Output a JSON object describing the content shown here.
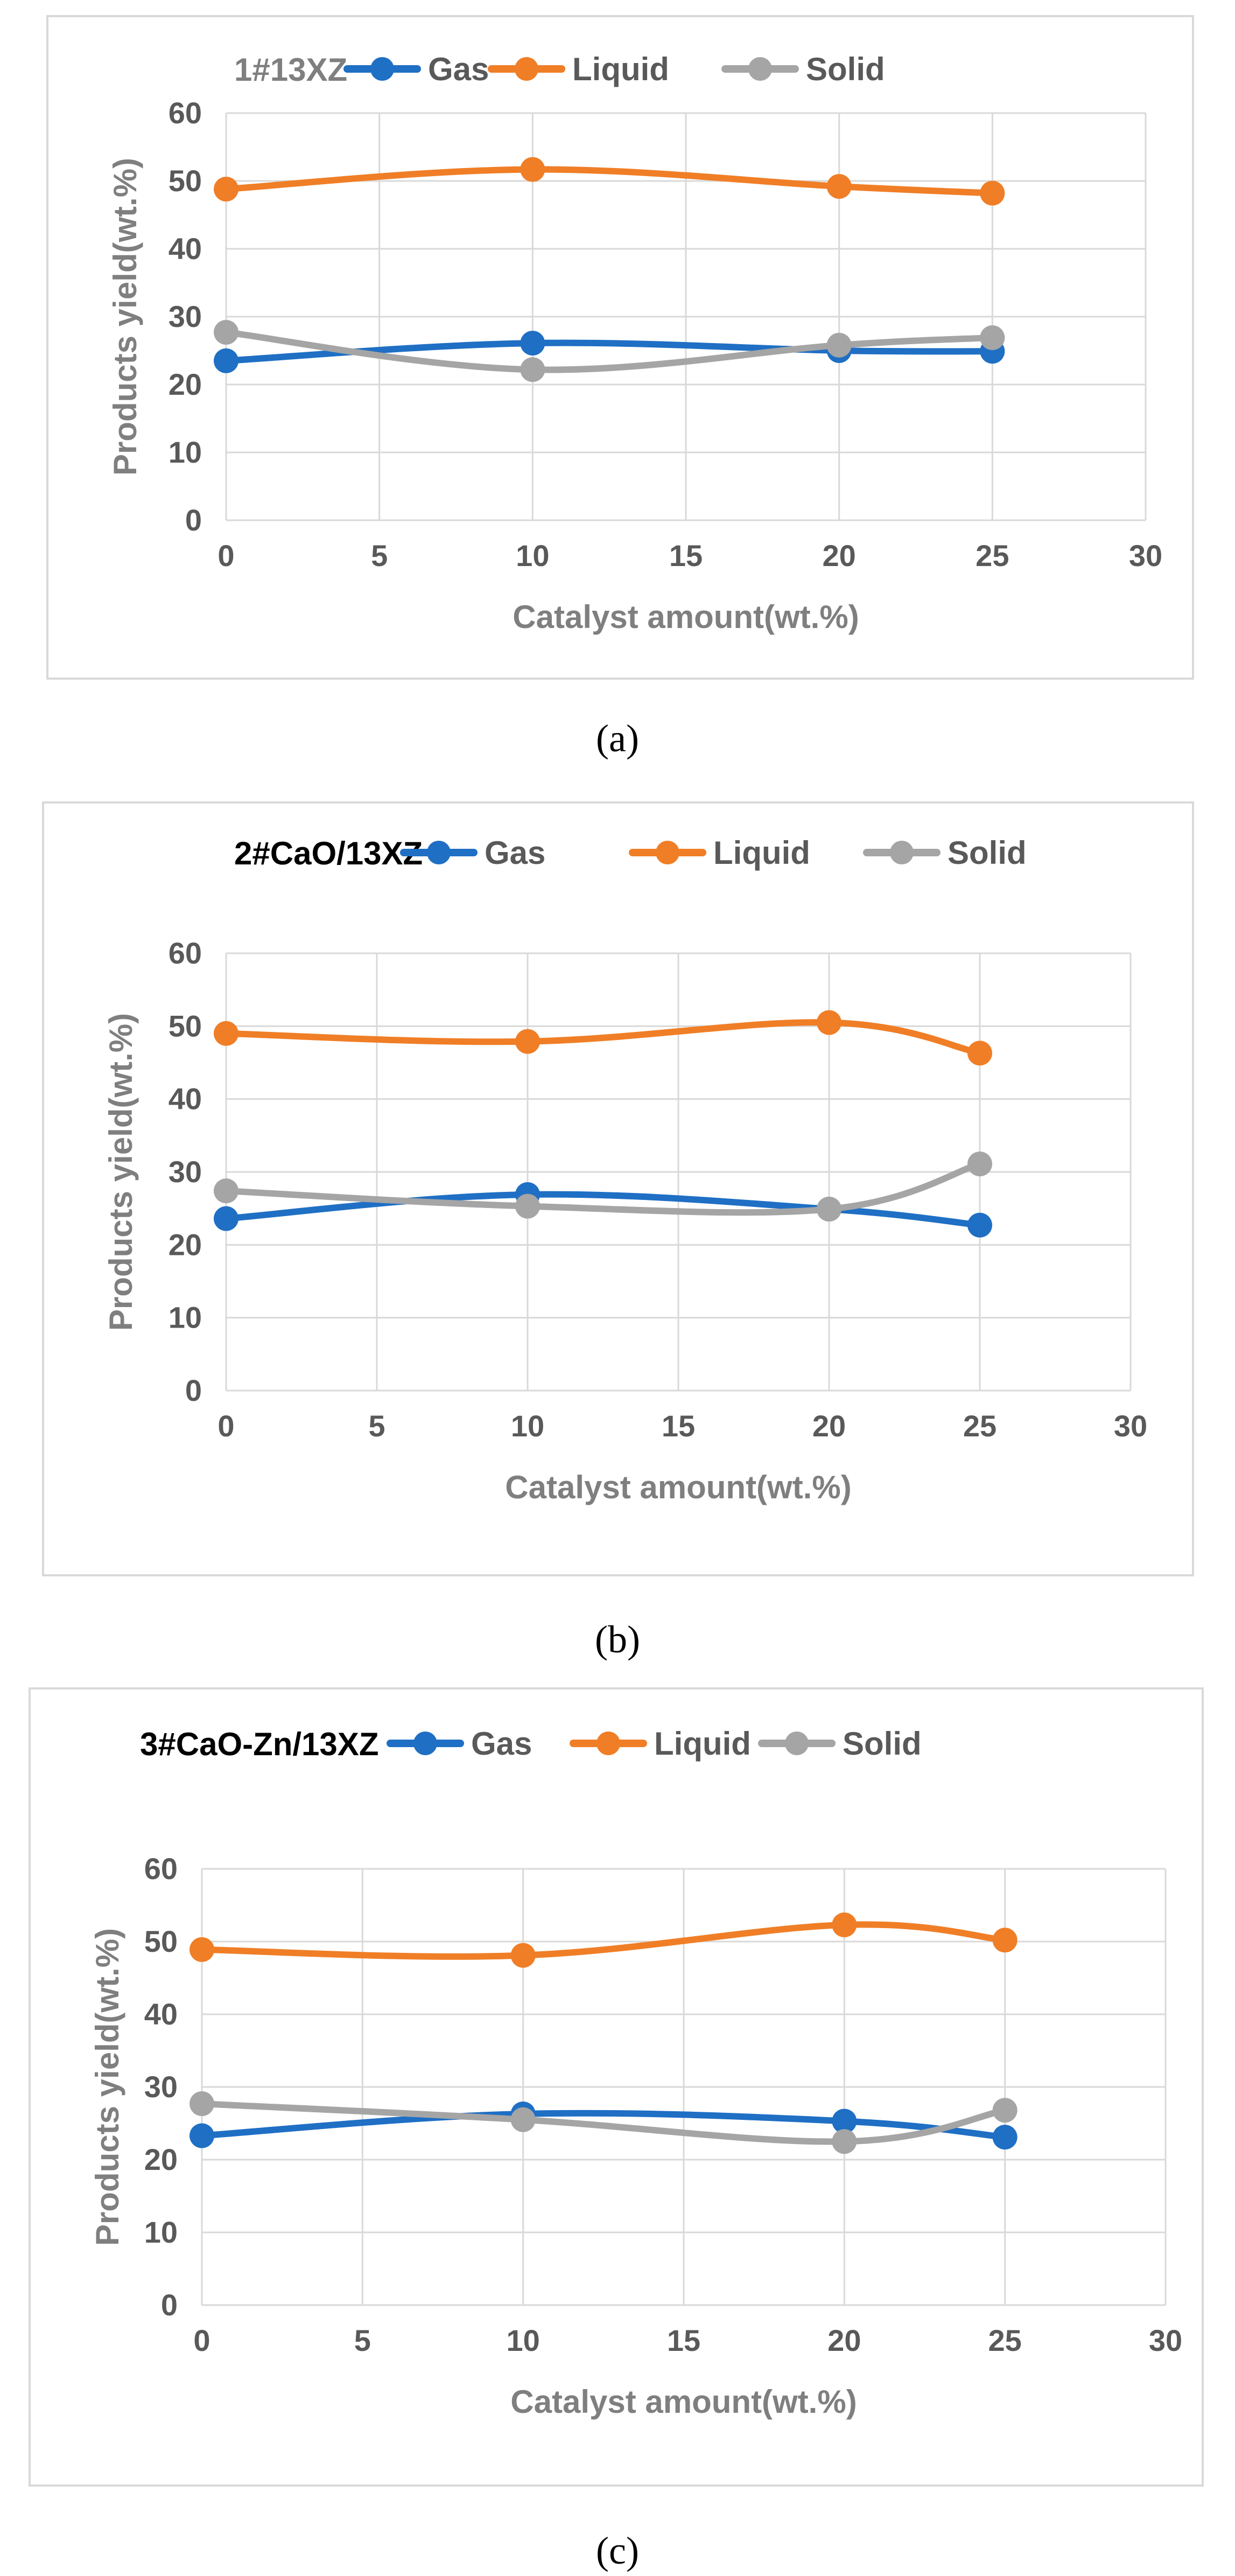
{
  "colors": {
    "gas": "#1f6fc4",
    "liquid": "#f07e26",
    "solid": "#a5a5a5",
    "grid": "#d9d9d9",
    "frame": "#d9d9d9"
  },
  "chart_data": [
    {
      "type": "line",
      "panel": "a",
      "title": "1#13XZ",
      "caption": "(a)",
      "xlabel": "Catalyst amount(wt.%)",
      "ylabel": "Products yield(wt.%)",
      "xlim": [
        0,
        30
      ],
      "ylim": [
        0,
        60
      ],
      "xticks": [
        "0",
        "5",
        "10",
        "15",
        "20",
        "25",
        "30"
      ],
      "yticks": [
        "0",
        "10",
        "20",
        "30",
        "40",
        "50",
        "60"
      ],
      "x": [
        0,
        10,
        20,
        25
      ],
      "series": [
        {
          "name": "Gas",
          "values": [
            23.5,
            26.1,
            25.0,
            24.9
          ]
        },
        {
          "name": "Liquid",
          "values": [
            48.8,
            51.7,
            49.2,
            48.2
          ]
        },
        {
          "name": "Solid",
          "values": [
            27.7,
            22.2,
            25.8,
            26.9
          ]
        }
      ]
    },
    {
      "type": "line",
      "panel": "b",
      "title": "2#CaO/13XZ",
      "caption": "(b)",
      "xlabel": "Catalyst amount(wt.%)",
      "ylabel": "Products yield(wt.%)",
      "xlim": [
        0,
        30
      ],
      "ylim": [
        0,
        60
      ],
      "xticks": [
        "0",
        "5",
        "10",
        "15",
        "20",
        "25",
        "30"
      ],
      "yticks": [
        "0",
        "10",
        "20",
        "30",
        "40",
        "50",
        "60"
      ],
      "x": [
        0,
        10,
        20,
        25
      ],
      "series": [
        {
          "name": "Gas",
          "values": [
            23.6,
            26.9,
            24.9,
            22.7
          ]
        },
        {
          "name": "Liquid",
          "values": [
            49.0,
            47.9,
            50.5,
            46.3
          ]
        },
        {
          "name": "Solid",
          "values": [
            27.4,
            25.3,
            24.9,
            31.1
          ]
        }
      ]
    },
    {
      "type": "line",
      "panel": "c",
      "title": "3#CaO-Zn/13XZ",
      "caption": "(c)",
      "xlabel": "Catalyst amount(wt.%)",
      "ylabel": "Products yield(wt.%)",
      "xlim": [
        0,
        30
      ],
      "ylim": [
        0,
        60
      ],
      "xticks": [
        "0",
        "5",
        "10",
        "15",
        "20",
        "25",
        "30"
      ],
      "yticks": [
        "0",
        "10",
        "20",
        "30",
        "40",
        "50",
        "60"
      ],
      "x": [
        0,
        10,
        20,
        25
      ],
      "series": [
        {
          "name": "Gas",
          "values": [
            23.3,
            26.3,
            25.3,
            23.1
          ]
        },
        {
          "name": "Liquid",
          "values": [
            48.9,
            48.1,
            52.3,
            50.2
          ]
        },
        {
          "name": "Solid",
          "values": [
            27.7,
            25.5,
            22.5,
            26.8
          ]
        }
      ]
    }
  ]
}
